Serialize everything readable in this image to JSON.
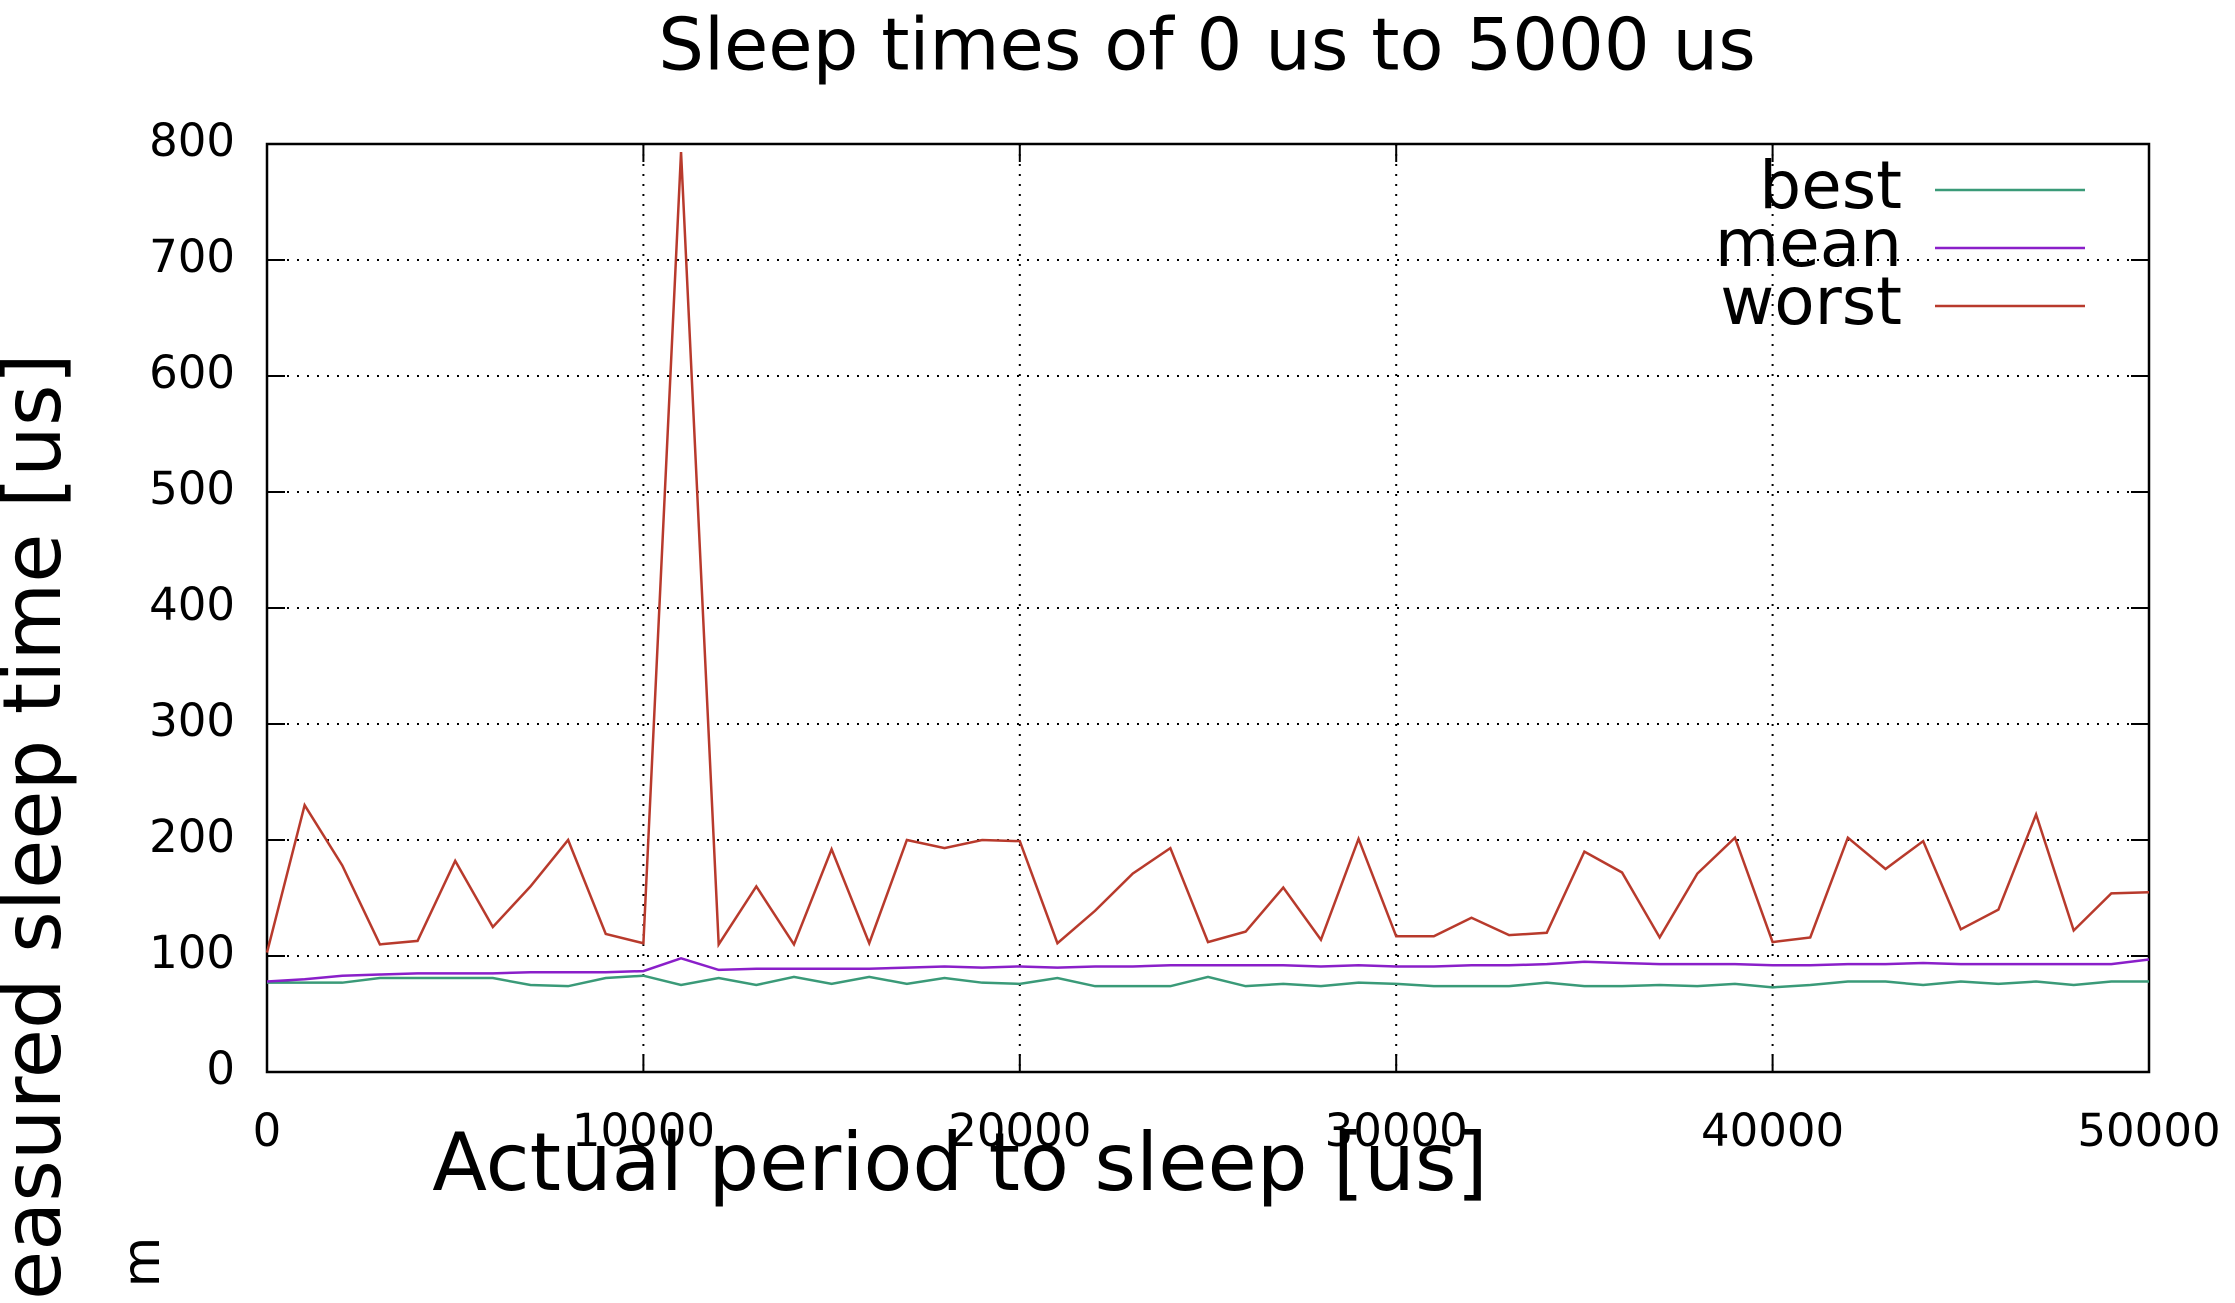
{
  "chart_data": {
    "type": "line",
    "title": "Sleep times of 0 us to 5000 us",
    "x_label": "Actual period to sleep [us]",
    "y_label": "easured sleep time [us]",
    "annotation": "m",
    "x": [
      0,
      1000,
      2000,
      3000,
      4000,
      5000,
      6000,
      7000,
      8000,
      9000,
      10000,
      11000,
      12000,
      13000,
      14000,
      15000,
      16000,
      17000,
      18000,
      19000,
      20000,
      21000,
      22000,
      23000,
      24000,
      25000,
      26000,
      27000,
      28000,
      29000,
      30000,
      31000,
      32000,
      33000,
      34000,
      35000,
      36000,
      37000,
      38000,
      39000,
      40000,
      41000,
      42000,
      43000,
      44000,
      45000,
      46000,
      47000,
      48000,
      49000,
      50000
    ],
    "series": [
      {
        "name": "best",
        "color": "#3a9a78",
        "values": [
          77,
          77,
          77,
          81,
          81,
          81,
          81,
          75,
          74,
          81,
          83,
          75,
          81,
          75,
          82,
          76,
          82,
          76,
          81,
          77,
          76,
          81,
          74,
          74,
          74,
          82,
          74,
          76,
          74,
          77,
          76,
          74,
          74,
          74,
          77,
          74,
          74,
          75,
          74,
          76,
          73,
          75,
          78,
          78,
          75,
          78,
          76,
          78,
          75,
          78,
          78
        ]
      },
      {
        "name": "mean",
        "color": "#8a1fc9",
        "values": [
          78,
          80,
          83,
          84,
          85,
          85,
          85,
          86,
          86,
          86,
          87,
          98,
          88,
          89,
          89,
          89,
          89,
          90,
          91,
          90,
          91,
          90,
          91,
          91,
          92,
          92,
          92,
          92,
          91,
          92,
          91,
          91,
          92,
          92,
          93,
          95,
          94,
          93,
          93,
          93,
          92,
          92,
          93,
          93,
          94,
          93,
          93,
          93,
          93,
          93,
          97
        ]
      },
      {
        "name": "worst",
        "color": "#b83a2c",
        "values": [
          103,
          230,
          178,
          110,
          113,
          182,
          125,
          160,
          200,
          119,
          111,
          793,
          110,
          160,
          110,
          192,
          111,
          200,
          193,
          200,
          199,
          111,
          139,
          171,
          193,
          112,
          121,
          159,
          114,
          201,
          117,
          117,
          133,
          118,
          120,
          190,
          172,
          116,
          171,
          202,
          112,
          116,
          202,
          175,
          199,
          123,
          140,
          222,
          122,
          154,
          155
        ]
      }
    ],
    "xlim": [
      0,
      50000
    ],
    "xticks": [
      0,
      10000,
      20000,
      30000,
      40000,
      50000
    ],
    "ylim": [
      0,
      800
    ],
    "yticks": [
      0,
      100,
      200,
      300,
      400,
      500,
      600,
      700,
      800
    ],
    "grid": true,
    "legend": "upper right"
  }
}
